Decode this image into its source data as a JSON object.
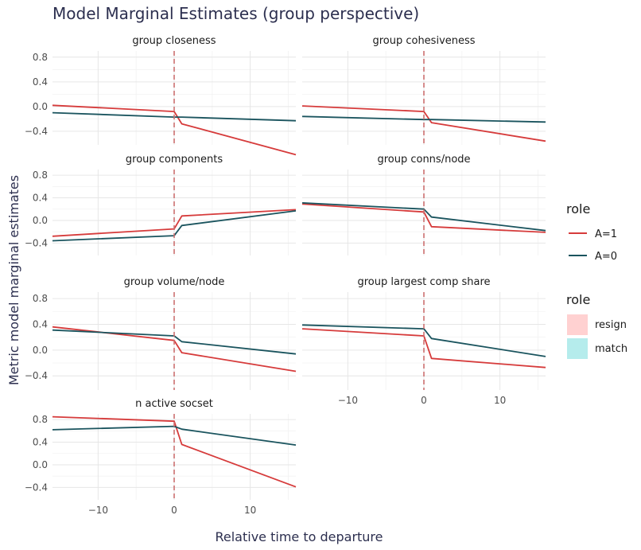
{
  "chart_data": {
    "type": "line",
    "title": "Model Marginal Estimates (group perspective)",
    "xlabel": "Relative time to departure",
    "ylabel": "Metric model marginal estimates",
    "xlim": [
      -16,
      16
    ],
    "ylim": [
      -0.62,
      0.9
    ],
    "x_ticks": [
      -10,
      0,
      10
    ],
    "x_tick_labels": [
      "−10",
      "0",
      "10"
    ],
    "y_ticks": [
      -0.4,
      0.0,
      0.4,
      0.8
    ],
    "y_tick_labels": [
      "−0.4",
      "0.0",
      "0.4",
      "0.8"
    ],
    "vline_x": 0,
    "colors": {
      "A1": "#d63b3b",
      "A0": "#1a545e",
      "vline": "#cc6f6f",
      "resign": "#ffd1d1",
      "match": "#b5ecec"
    },
    "legend_line": {
      "title": "role",
      "entries": [
        {
          "label": "A=1",
          "color": "#d63b3b"
        },
        {
          "label": "A=0",
          "color": "#1a545e"
        }
      ]
    },
    "legend_fill": {
      "title": "role",
      "entries": [
        {
          "label": "resign",
          "color": "#ffd1d1"
        },
        {
          "label": "match",
          "color": "#b5ecec"
        }
      ]
    },
    "panels": [
      {
        "title": "group closeness",
        "series": [
          {
            "name": "A=1",
            "x": [
              -16,
              0,
              1,
              16
            ],
            "y": [
              0.02,
              -0.08,
              -0.28,
              -0.78
            ]
          },
          {
            "name": "A=0",
            "x": [
              -16,
              0,
              1,
              16
            ],
            "y": [
              -0.1,
              -0.17,
              -0.17,
              -0.23
            ]
          }
        ]
      },
      {
        "title": "group cohesiveness",
        "series": [
          {
            "name": "A=1",
            "x": [
              -16,
              0,
              1,
              16
            ],
            "y": [
              0.01,
              -0.08,
              -0.26,
              -0.56
            ]
          },
          {
            "name": "A=0",
            "x": [
              -16,
              0,
              1,
              16
            ],
            "y": [
              -0.16,
              -0.21,
              -0.21,
              -0.25
            ]
          }
        ]
      },
      {
        "title": "group components",
        "series": [
          {
            "name": "A=1",
            "x": [
              -16,
              0,
              1,
              16
            ],
            "y": [
              -0.28,
              -0.15,
              0.08,
              0.19
            ]
          },
          {
            "name": "A=0",
            "x": [
              -16,
              0,
              1,
              16
            ],
            "y": [
              -0.36,
              -0.27,
              -0.09,
              0.17
            ]
          }
        ]
      },
      {
        "title": "group conns/node",
        "series": [
          {
            "name": "A=1",
            "x": [
              -16,
              0,
              1,
              16
            ],
            "y": [
              0.29,
              0.15,
              -0.11,
              -0.21
            ]
          },
          {
            "name": "A=0",
            "x": [
              -16,
              0,
              1,
              16
            ],
            "y": [
              0.31,
              0.2,
              0.06,
              -0.18
            ]
          }
        ]
      },
      {
        "title": "group volume/node",
        "series": [
          {
            "name": "A=1",
            "x": [
              -16,
              0,
              1,
              16
            ],
            "y": [
              0.36,
              0.15,
              -0.04,
              -0.33
            ]
          },
          {
            "name": "A=0",
            "x": [
              -16,
              0,
              1,
              16
            ],
            "y": [
              0.31,
              0.22,
              0.13,
              -0.06
            ]
          }
        ]
      },
      {
        "title": "group largest comp share",
        "series": [
          {
            "name": "A=1",
            "x": [
              -16,
              0,
              1,
              16
            ],
            "y": [
              0.33,
              0.22,
              -0.13,
              -0.27
            ]
          },
          {
            "name": "A=0",
            "x": [
              -16,
              0,
              1,
              16
            ],
            "y": [
              0.39,
              0.33,
              0.18,
              -0.1
            ]
          }
        ]
      },
      {
        "title": "n active socset",
        "series": [
          {
            "name": "A=1",
            "x": [
              -16,
              0,
              1,
              16
            ],
            "y": [
              0.85,
              0.77,
              0.36,
              -0.39
            ]
          },
          {
            "name": "A=0",
            "x": [
              -16,
              0,
              1,
              16
            ],
            "y": [
              0.62,
              0.68,
              0.63,
              0.35
            ]
          }
        ]
      }
    ]
  }
}
